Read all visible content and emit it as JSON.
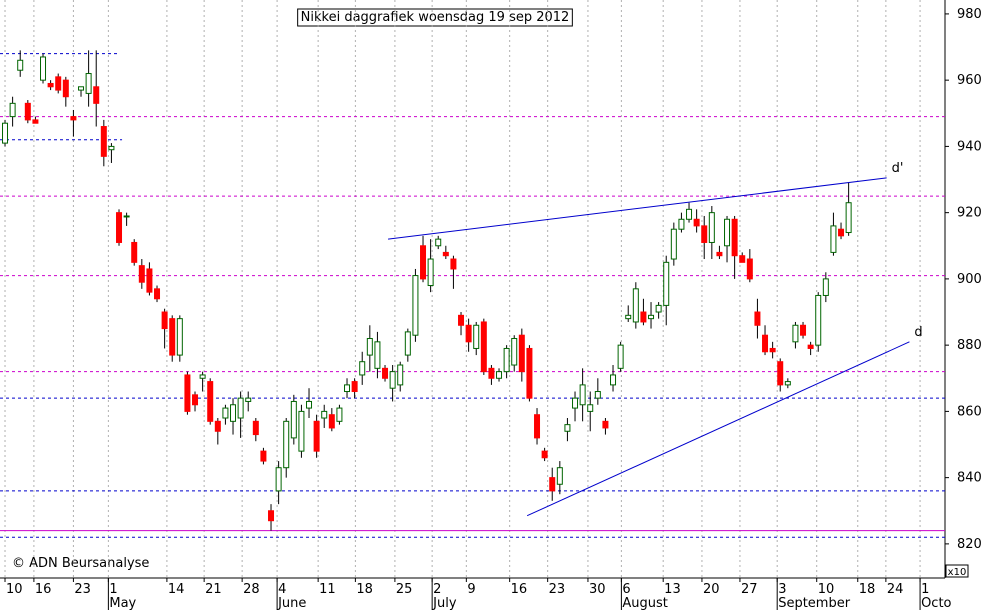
{
  "chart_data": {
    "type": "candlestick",
    "title": "Nikkei daggrafiek woensdag 19 sep 2012",
    "copyright": "© ADN Beursanalyse",
    "scale_note": "x10",
    "open": [
      941,
      949,
      963,
      953,
      948,
      960,
      959,
      961,
      960,
      949,
      957,
      956,
      958,
      946,
      939,
      920,
      919,
      911,
      904,
      903,
      897,
      890,
      888,
      877,
      871,
      865,
      870,
      869,
      857,
      858,
      857,
      858,
      863,
      857,
      848,
      830,
      836,
      843,
      852,
      848,
      861,
      857,
      858,
      859,
      857,
      866,
      869,
      871,
      877,
      873,
      873,
      867,
      868,
      877,
      883,
      910,
      898,
      910,
      908,
      906,
      889,
      886,
      879,
      887,
      873,
      870,
      872,
      874,
      883,
      879,
      859,
      848,
      840,
      838,
      854,
      861,
      862,
      860,
      864,
      857,
      868,
      873,
      888,
      887,
      890,
      888,
      890,
      892,
      906,
      915,
      918,
      918,
      916,
      911,
      908,
      910,
      918,
      907,
      906,
      890,
      883,
      879,
      875,
      868,
      881,
      886,
      880,
      880,
      895,
      908,
      915,
      914
    ],
    "high": [
      948,
      955,
      969,
      954,
      949,
      968,
      960,
      962,
      961,
      951,
      958,
      969,
      969,
      948,
      941,
      921,
      920,
      912,
      906,
      905,
      898,
      891,
      889,
      889,
      872,
      866,
      872,
      870,
      858,
      862,
      864,
      866,
      866,
      858,
      849,
      832,
      845,
      858,
      865,
      862,
      867,
      859,
      862,
      861,
      862,
      870,
      870,
      878,
      886,
      884,
      874,
      874,
      875,
      885,
      903,
      913,
      912,
      913,
      910,
      907,
      890,
      888,
      887,
      888,
      874,
      873,
      880,
      883,
      885,
      880,
      861,
      849,
      843,
      845,
      858,
      866,
      873,
      866,
      870,
      858,
      874,
      881,
      892,
      899,
      894,
      893,
      893,
      907,
      917,
      920,
      923,
      921,
      919,
      922,
      910,
      919,
      919,
      908,
      909,
      894,
      886,
      881,
      876,
      870,
      887,
      887,
      881,
      896,
      902,
      920,
      917,
      929
    ],
    "low": [
      940,
      946,
      961,
      947,
      947,
      959,
      957,
      956,
      952,
      943,
      955,
      952,
      946,
      934,
      935,
      910,
      916,
      904,
      897,
      895,
      893,
      879,
      875,
      875,
      859,
      860,
      866,
      856,
      850,
      856,
      853,
      852,
      860,
      851,
      844,
      824,
      832,
      840,
      850,
      846,
      858,
      846,
      855,
      854,
      856,
      864,
      864,
      868,
      872,
      870,
      869,
      863,
      866,
      875,
      881,
      899,
      896,
      909,
      906,
      897,
      883,
      878,
      877,
      871,
      868,
      869,
      870,
      872,
      869,
      863,
      850,
      845,
      833,
      835,
      851,
      857,
      857,
      854,
      862,
      853,
      866,
      872,
      887,
      885,
      886,
      885,
      888,
      886,
      904,
      914,
      917,
      914,
      906,
      906,
      906,
      905,
      900,
      905,
      899,
      882,
      877,
      876,
      866,
      867,
      879,
      882,
      877,
      878,
      893,
      907,
      912,
      913
    ],
    "close": [
      947,
      953,
      966,
      948,
      947,
      967,
      958,
      957,
      955,
      948,
      958,
      962,
      953,
      937,
      940,
      911,
      919,
      905,
      899,
      896,
      894,
      885,
      877,
      888,
      860,
      862,
      871,
      857,
      854,
      861,
      862,
      864,
      864,
      853,
      845,
      827,
      843,
      857,
      863,
      860,
      863,
      848,
      860,
      855,
      861,
      868,
      866,
      875,
      882,
      881,
      870,
      872,
      874,
      884,
      901,
      900,
      906,
      912,
      907,
      903,
      886,
      881,
      886,
      872,
      870,
      872,
      879,
      882,
      872,
      864,
      852,
      846,
      836,
      843,
      856,
      864,
      868,
      862,
      866,
      855,
      871,
      880,
      889,
      897,
      887,
      889,
      892,
      905,
      915,
      918,
      921,
      916,
      911,
      920,
      907,
      918,
      907,
      905,
      900,
      886,
      878,
      878,
      868,
      869,
      886,
      883,
      879,
      895,
      900,
      916,
      913,
      923
    ],
    "up_color": "#ffffff",
    "down_color": "#ff0000",
    "outline_color": "#006400",
    "ylim": [
      809.7,
      984.2
    ],
    "yticks": [
      820,
      840,
      860,
      880,
      900,
      920,
      940,
      960,
      980
    ],
    "xlim": [
      -0.66,
      123.68
    ],
    "xticks": [
      {
        "value": 0,
        "label": "10"
      },
      {
        "value": 3.8,
        "label": "16"
      },
      {
        "value": 9,
        "label": "23"
      },
      {
        "value": 13.6,
        "label": "1"
      },
      {
        "value": 21.3,
        "label": "14"
      },
      {
        "value": 26.2,
        "label": "21"
      },
      {
        "value": 31.2,
        "label": "28"
      },
      {
        "value": 35.8,
        "label": "4"
      },
      {
        "value": 41.2,
        "label": "11"
      },
      {
        "value": 46.1,
        "label": "18"
      },
      {
        "value": 51.3,
        "label": "25"
      },
      {
        "value": 56.2,
        "label": "2"
      },
      {
        "value": 60.7,
        "label": "9"
      },
      {
        "value": 66.4,
        "label": "16"
      },
      {
        "value": 71.4,
        "label": "23"
      },
      {
        "value": 76.7,
        "label": "30"
      },
      {
        "value": 81.1,
        "label": "6"
      },
      {
        "value": 86.6,
        "label": "13"
      },
      {
        "value": 91.7,
        "label": "20"
      },
      {
        "value": 96.7,
        "label": "27"
      },
      {
        "value": 101.6,
        "label": "3"
      },
      {
        "value": 106.8,
        "label": "10"
      },
      {
        "value": 112.2,
        "label": "18"
      },
      {
        "value": 115.9,
        "label": "24"
      },
      {
        "value": 120.4,
        "label": "1"
      }
    ],
    "month_ticks": [
      {
        "value": 13.6,
        "label": "May"
      },
      {
        "value": 35.8,
        "label": "June"
      },
      {
        "value": 56.2,
        "label": "July"
      },
      {
        "value": 81.1,
        "label": "August"
      },
      {
        "value": 101.6,
        "label": "September"
      },
      {
        "value": 120.4,
        "label": "Octo"
      }
    ],
    "levels": [
      {
        "value": 968,
        "color": "#0000cc",
        "style": "dashed",
        "x_to": 14.9
      },
      {
        "value": 942,
        "color": "#0000cc",
        "style": "dashed",
        "x_to": 15.4
      },
      {
        "value": 864,
        "color": "#0000cc",
        "style": "dashed"
      },
      {
        "value": 836,
        "color": "#0000cc",
        "style": "dashed"
      },
      {
        "value": 822,
        "color": "#0000cc",
        "style": "dashed"
      },
      {
        "value": 949,
        "color": "#cc00cc",
        "style": "dashed"
      },
      {
        "value": 925,
        "color": "#cc00cc",
        "style": "dashed"
      },
      {
        "value": 901,
        "color": "#cc00cc",
        "style": "dashed"
      },
      {
        "value": 872,
        "color": "#cc00cc",
        "style": "dashed"
      },
      {
        "value": 824,
        "color": "#cc00cc",
        "style": "solid"
      }
    ],
    "trendlines": [
      {
        "label": "d'",
        "color": "#0000cc",
        "x": [
          50.4,
          116
        ],
        "y": [
          912,
          930.5
        ]
      },
      {
        "label": "d",
        "color": "#0000cc",
        "x": [
          68.7,
          119
        ],
        "y": [
          828.5,
          881
        ]
      }
    ]
  }
}
